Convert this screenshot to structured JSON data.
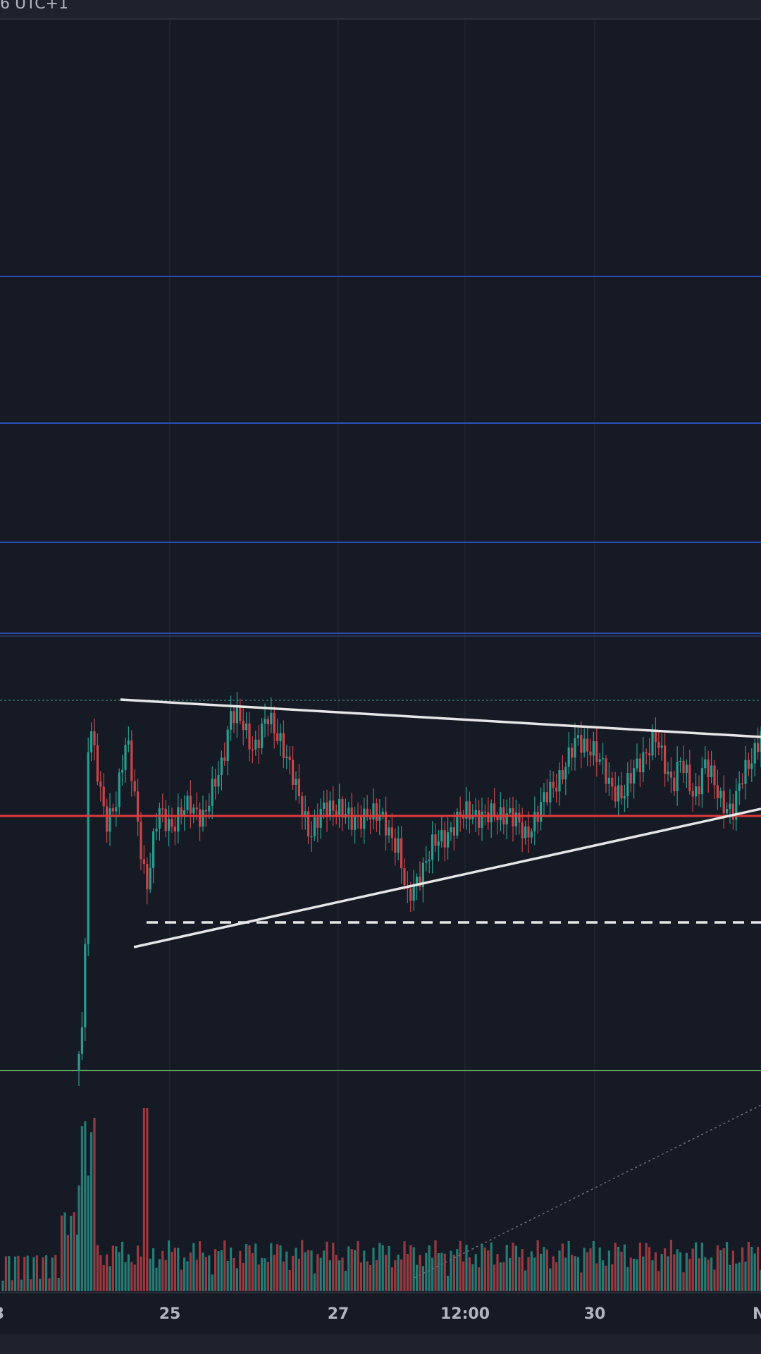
{
  "header": {
    "timezone": "6 UTC+1"
  },
  "x_axis": {
    "labels": [
      "3",
      "25",
      "27",
      "12:00",
      "30",
      "N"
    ]
  }
}
